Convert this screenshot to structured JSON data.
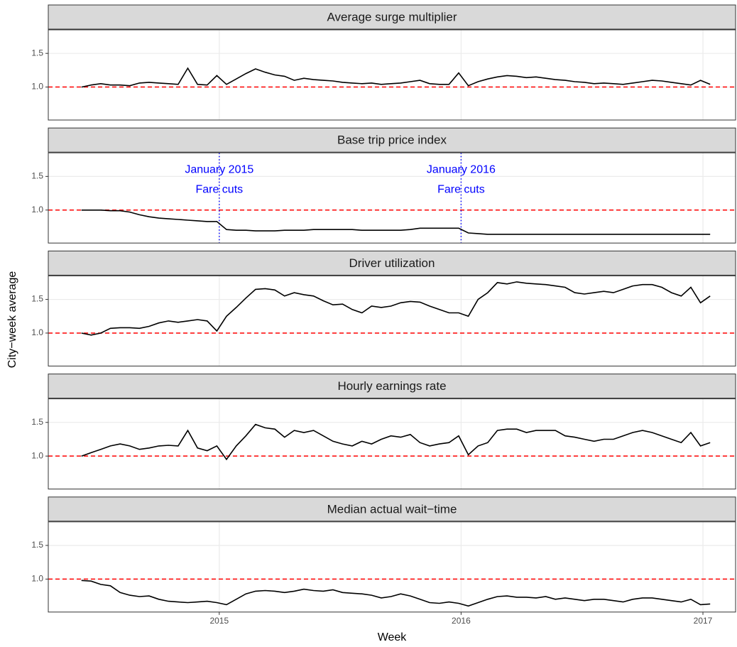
{
  "chart_data": {
    "type": "line",
    "x_label": "Week",
    "y_label": "City−week average",
    "xlim": [
      2014.293,
      2017.135
    ],
    "xticks": [
      2015,
      2016,
      2017
    ],
    "ylim": [
      0.51,
      1.85
    ],
    "yticks": [
      {
        "value": 1,
        "label": "1.0"
      },
      {
        "value": 1.5,
        "label": "1.5"
      }
    ],
    "grid": true,
    "line_color": "#000000",
    "hline": {
      "value": 1,
      "color": "#ff0000"
    },
    "x": [
      2014.43,
      2014.47,
      2014.51,
      2014.55,
      2014.59,
      2014.63,
      2014.67,
      2014.71,
      2014.75,
      2014.79,
      2014.83,
      2014.87,
      2014.91,
      2014.95,
      2014.99,
      2015.03,
      2015.07,
      2015.11,
      2015.15,
      2015.19,
      2015.23,
      2015.27,
      2015.31,
      2015.35,
      2015.39,
      2015.43,
      2015.47,
      2015.51,
      2015.55,
      2015.59,
      2015.63,
      2015.67,
      2015.71,
      2015.75,
      2015.79,
      2015.83,
      2015.87,
      2015.91,
      2015.95,
      2015.99,
      2016.03,
      2016.07,
      2016.11,
      2016.15,
      2016.19,
      2016.23,
      2016.27,
      2016.31,
      2016.35,
      2016.39,
      2016.43,
      2016.47,
      2016.51,
      2016.55,
      2016.59,
      2016.63,
      2016.67,
      2016.71,
      2016.75,
      2016.79,
      2016.83,
      2016.87,
      2016.91,
      2016.95,
      2016.99,
      2017.03
    ],
    "facets": [
      {
        "title": "Average surge multiplier",
        "values": [
          1.0,
          1.03,
          1.05,
          1.03,
          1.03,
          1.02,
          1.06,
          1.07,
          1.06,
          1.05,
          1.04,
          1.28,
          1.04,
          1.03,
          1.17,
          1.04,
          1.12,
          1.2,
          1.27,
          1.22,
          1.18,
          1.16,
          1.1,
          1.13,
          1.11,
          1.1,
          1.09,
          1.07,
          1.06,
          1.05,
          1.06,
          1.04,
          1.05,
          1.06,
          1.08,
          1.1,
          1.05,
          1.04,
          1.04,
          1.21,
          1.02,
          1.08,
          1.12,
          1.15,
          1.17,
          1.16,
          1.14,
          1.15,
          1.13,
          1.11,
          1.1,
          1.08,
          1.07,
          1.05,
          1.06,
          1.05,
          1.04,
          1.06,
          1.08,
          1.1,
          1.09,
          1.07,
          1.05,
          1.03,
          1.1,
          1.04
        ]
      },
      {
        "title": "Base trip price index",
        "values": [
          1.0,
          1.0,
          1.0,
          0.99,
          0.99,
          0.97,
          0.93,
          0.9,
          0.88,
          0.87,
          0.86,
          0.85,
          0.84,
          0.83,
          0.83,
          0.71,
          0.7,
          0.7,
          0.69,
          0.69,
          0.69,
          0.7,
          0.7,
          0.7,
          0.71,
          0.71,
          0.71,
          0.71,
          0.71,
          0.7,
          0.7,
          0.7,
          0.7,
          0.7,
          0.71,
          0.73,
          0.73,
          0.73,
          0.73,
          0.73,
          0.66,
          0.65,
          0.64,
          0.64,
          0.64,
          0.64,
          0.64,
          0.64,
          0.64,
          0.64,
          0.64,
          0.64,
          0.64,
          0.64,
          0.64,
          0.64,
          0.64,
          0.64,
          0.64,
          0.64,
          0.64,
          0.64,
          0.64,
          0.64,
          0.64,
          0.64
        ],
        "annotations": [
          {
            "x": 2015,
            "text": [
              "January 2015",
              "Fare cuts"
            ],
            "color": "#0000ff"
          },
          {
            "x": 2016,
            "text": [
              "January 2016",
              "Fare cuts"
            ],
            "color": "#0000ff"
          }
        ]
      },
      {
        "title": "Driver utilization",
        "values": [
          1.0,
          0.97,
          1.0,
          1.07,
          1.08,
          1.08,
          1.07,
          1.1,
          1.15,
          1.18,
          1.16,
          1.18,
          1.2,
          1.18,
          1.03,
          1.25,
          1.38,
          1.52,
          1.65,
          1.66,
          1.64,
          1.55,
          1.6,
          1.57,
          1.55,
          1.48,
          1.42,
          1.43,
          1.35,
          1.3,
          1.4,
          1.38,
          1.4,
          1.45,
          1.47,
          1.46,
          1.4,
          1.35,
          1.3,
          1.3,
          1.25,
          1.5,
          1.6,
          1.75,
          1.73,
          1.76,
          1.74,
          1.73,
          1.72,
          1.7,
          1.68,
          1.6,
          1.58,
          1.6,
          1.62,
          1.6,
          1.65,
          1.7,
          1.72,
          1.72,
          1.68,
          1.6,
          1.55,
          1.68,
          1.45,
          1.55
        ]
      },
      {
        "title": "Hourly earnings rate",
        "values": [
          1.0,
          1.05,
          1.1,
          1.15,
          1.18,
          1.15,
          1.1,
          1.12,
          1.15,
          1.16,
          1.15,
          1.38,
          1.12,
          1.08,
          1.15,
          0.95,
          1.15,
          1.3,
          1.47,
          1.42,
          1.4,
          1.28,
          1.38,
          1.35,
          1.38,
          1.3,
          1.22,
          1.18,
          1.15,
          1.22,
          1.18,
          1.25,
          1.3,
          1.28,
          1.32,
          1.2,
          1.15,
          1.18,
          1.2,
          1.3,
          1.02,
          1.15,
          1.2,
          1.38,
          1.4,
          1.4,
          1.35,
          1.38,
          1.38,
          1.38,
          1.3,
          1.28,
          1.25,
          1.22,
          1.25,
          1.25,
          1.3,
          1.35,
          1.38,
          1.35,
          1.3,
          1.25,
          1.2,
          1.35,
          1.15,
          1.2
        ]
      },
      {
        "title": "Median actual wait−time",
        "values": [
          0.98,
          0.97,
          0.92,
          0.9,
          0.8,
          0.76,
          0.74,
          0.75,
          0.7,
          0.67,
          0.66,
          0.65,
          0.66,
          0.67,
          0.65,
          0.62,
          0.7,
          0.78,
          0.82,
          0.83,
          0.82,
          0.8,
          0.82,
          0.85,
          0.83,
          0.82,
          0.84,
          0.8,
          0.79,
          0.78,
          0.76,
          0.72,
          0.74,
          0.78,
          0.75,
          0.7,
          0.65,
          0.64,
          0.66,
          0.64,
          0.6,
          0.65,
          0.7,
          0.74,
          0.75,
          0.73,
          0.73,
          0.72,
          0.74,
          0.7,
          0.72,
          0.7,
          0.68,
          0.7,
          0.7,
          0.68,
          0.66,
          0.7,
          0.72,
          0.72,
          0.7,
          0.68,
          0.66,
          0.7,
          0.62,
          0.63
        ]
      }
    ]
  }
}
